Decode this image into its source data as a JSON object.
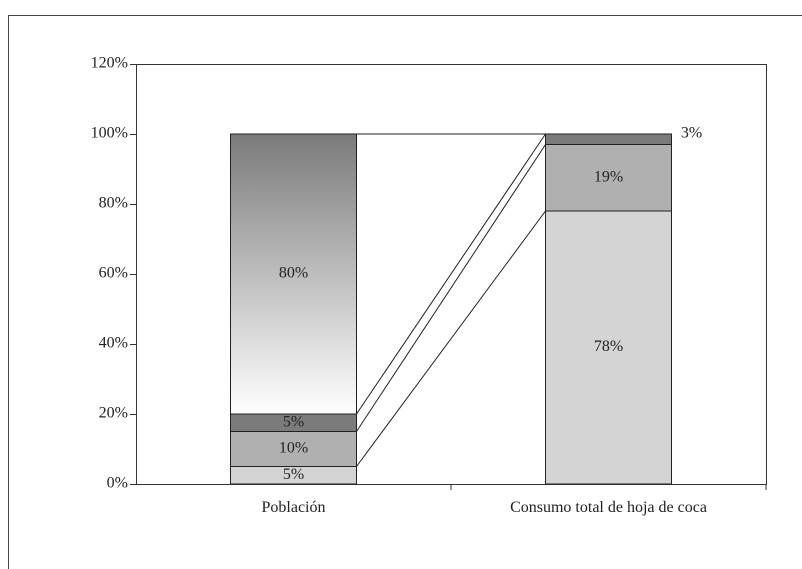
{
  "chart_data": {
    "type": "stacked_bar",
    "categories": [
      "Población",
      "Consumo total de hoja de coca"
    ],
    "series": [
      {
        "color": "#d4d4d4",
        "values": [
          5,
          78
        ],
        "value_labels": [
          "5%",
          "78%"
        ]
      },
      {
        "color": "#b0b0b0",
        "values": [
          10,
          19
        ],
        "value_labels": [
          "10%",
          "19%"
        ]
      },
      {
        "color": "#7b7b7b",
        "values": [
          5,
          3
        ],
        "value_labels": [
          "5%",
          "3%"
        ]
      },
      {
        "color": "gradient",
        "values": [
          80,
          null
        ],
        "value_labels": [
          "80%",
          null
        ]
      }
    ],
    "ylim": [
      0,
      120
    ],
    "yticks": [
      {
        "value": 0,
        "label": "0%"
      },
      {
        "value": 20,
        "label": "20%"
      },
      {
        "value": 40,
        "label": "40%"
      },
      {
        "value": 60,
        "label": "60%"
      },
      {
        "value": 80,
        "label": "80%"
      },
      {
        "value": 100,
        "label": "100%"
      },
      {
        "value": 120,
        "label": "120%"
      }
    ],
    "connectors": true
  }
}
